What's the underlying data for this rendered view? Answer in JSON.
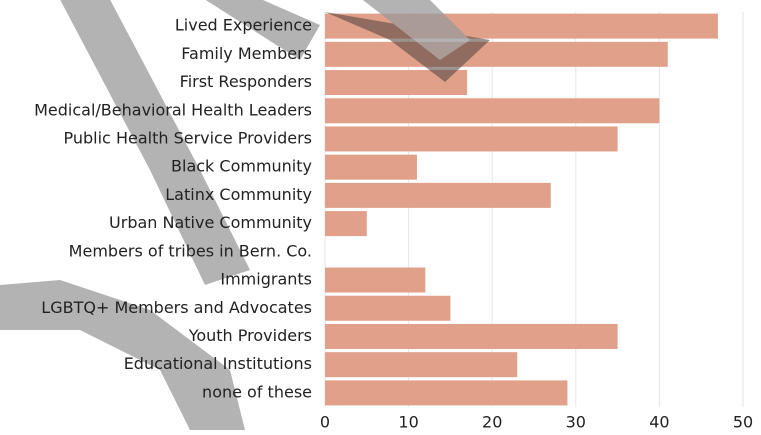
{
  "chart_data": {
    "type": "bar",
    "orientation": "horizontal",
    "categories": [
      "Lived Experience",
      "Family Members",
      "First Responders",
      "Medical/Behavioral Health Leaders",
      "Public Health Service Providers",
      "Black Community",
      "Latinx Community",
      "Urban Native Community",
      "Members of tribes in Bern. Co.",
      "Immigrants",
      "LGBTQ+ Members and Advocates",
      "Youth Providers",
      "Educational Institutions",
      "none of these"
    ],
    "values": [
      47,
      41,
      17,
      40,
      35,
      11,
      27,
      5,
      0,
      12,
      15,
      35,
      23,
      29
    ],
    "color": "#e0a08a",
    "xlim": [
      0,
      50
    ],
    "xticks": [
      0,
      10,
      20,
      30,
      40,
      50
    ],
    "grid": true
  }
}
